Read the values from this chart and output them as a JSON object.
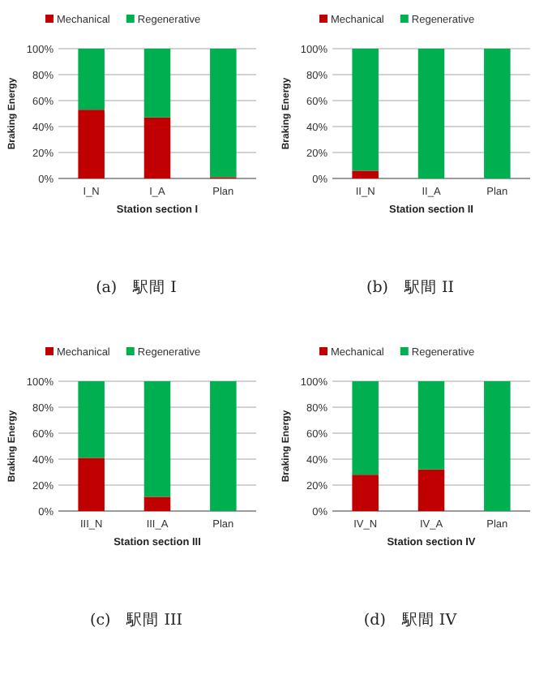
{
  "chart_data": [
    {
      "type": "bar",
      "stacked": true,
      "categories": [
        "I_N",
        "I_A",
        "Plan"
      ],
      "series": [
        {
          "name": "Mechanical",
          "color": "#c00000",
          "values": [
            53,
            47,
            1
          ]
        },
        {
          "name": "Regenerative",
          "color": "#00b050",
          "values": [
            47,
            53,
            99
          ]
        }
      ],
      "ylim": [
        0,
        100
      ],
      "yticks": [
        {
          "value": 0,
          "label": "0%"
        },
        {
          "value": 20,
          "label": "20%"
        },
        {
          "value": 40,
          "label": "40%"
        },
        {
          "value": 60,
          "label": "60%"
        },
        {
          "value": 80,
          "label": "80%"
        },
        {
          "value": 100,
          "label": "100%"
        }
      ],
      "ylabel": "Braking Energy",
      "xlabel": "Station section I",
      "grid": "y",
      "legend": "top",
      "annotations": [
        "(a)　駅間 I"
      ]
    },
    {
      "type": "bar",
      "stacked": true,
      "categories": [
        "II_N",
        "II_A",
        "Plan"
      ],
      "series": [
        {
          "name": "Mechanical",
          "color": "#c00000",
          "values": [
            6,
            0,
            0
          ]
        },
        {
          "name": "Regenerative",
          "color": "#00b050",
          "values": [
            94,
            100,
            100
          ]
        }
      ],
      "ylim": [
        0,
        100
      ],
      "yticks": [
        {
          "value": 0,
          "label": "0%"
        },
        {
          "value": 20,
          "label": "20%"
        },
        {
          "value": 40,
          "label": "40%"
        },
        {
          "value": 60,
          "label": "60%"
        },
        {
          "value": 80,
          "label": "80%"
        },
        {
          "value": 100,
          "label": "100%"
        }
      ],
      "ylabel": "Braking Energy",
      "xlabel": "Station section II",
      "grid": "y",
      "legend": "top",
      "annotations": [
        "(b)　駅間 II"
      ]
    },
    {
      "type": "bar",
      "stacked": true,
      "categories": [
        "III_N",
        "III_A",
        "Plan"
      ],
      "series": [
        {
          "name": "Mechanical",
          "color": "#c00000",
          "values": [
            41,
            11,
            0
          ]
        },
        {
          "name": "Regenerative",
          "color": "#00b050",
          "values": [
            59,
            89,
            100
          ]
        }
      ],
      "ylim": [
        0,
        100
      ],
      "yticks": [
        {
          "value": 0,
          "label": "0%"
        },
        {
          "value": 20,
          "label": "20%"
        },
        {
          "value": 40,
          "label": "40%"
        },
        {
          "value": 60,
          "label": "60%"
        },
        {
          "value": 80,
          "label": "80%"
        },
        {
          "value": 100,
          "label": "100%"
        }
      ],
      "ylabel": "Braking Energy",
      "xlabel": "Station section III",
      "grid": "y",
      "legend": "top",
      "annotations": [
        "(c)　駅間 III"
      ]
    },
    {
      "type": "bar",
      "stacked": true,
      "categories": [
        "IV_N",
        "IV_A",
        "Plan"
      ],
      "series": [
        {
          "name": "Mechanical",
          "color": "#c00000",
          "values": [
            28,
            32,
            0
          ]
        },
        {
          "name": "Regenerative",
          "color": "#00b050",
          "values": [
            72,
            68,
            100
          ]
        }
      ],
      "ylim": [
        0,
        100
      ],
      "yticks": [
        {
          "value": 0,
          "label": "0%"
        },
        {
          "value": 20,
          "label": "20%"
        },
        {
          "value": 40,
          "label": "40%"
        },
        {
          "value": 60,
          "label": "60%"
        },
        {
          "value": 80,
          "label": "80%"
        },
        {
          "value": 100,
          "label": "100%"
        }
      ],
      "ylabel": "Braking Energy",
      "xlabel": "Station section IV",
      "grid": "y",
      "legend": "top",
      "annotations": [
        "(d)　駅間 IV"
      ]
    }
  ]
}
